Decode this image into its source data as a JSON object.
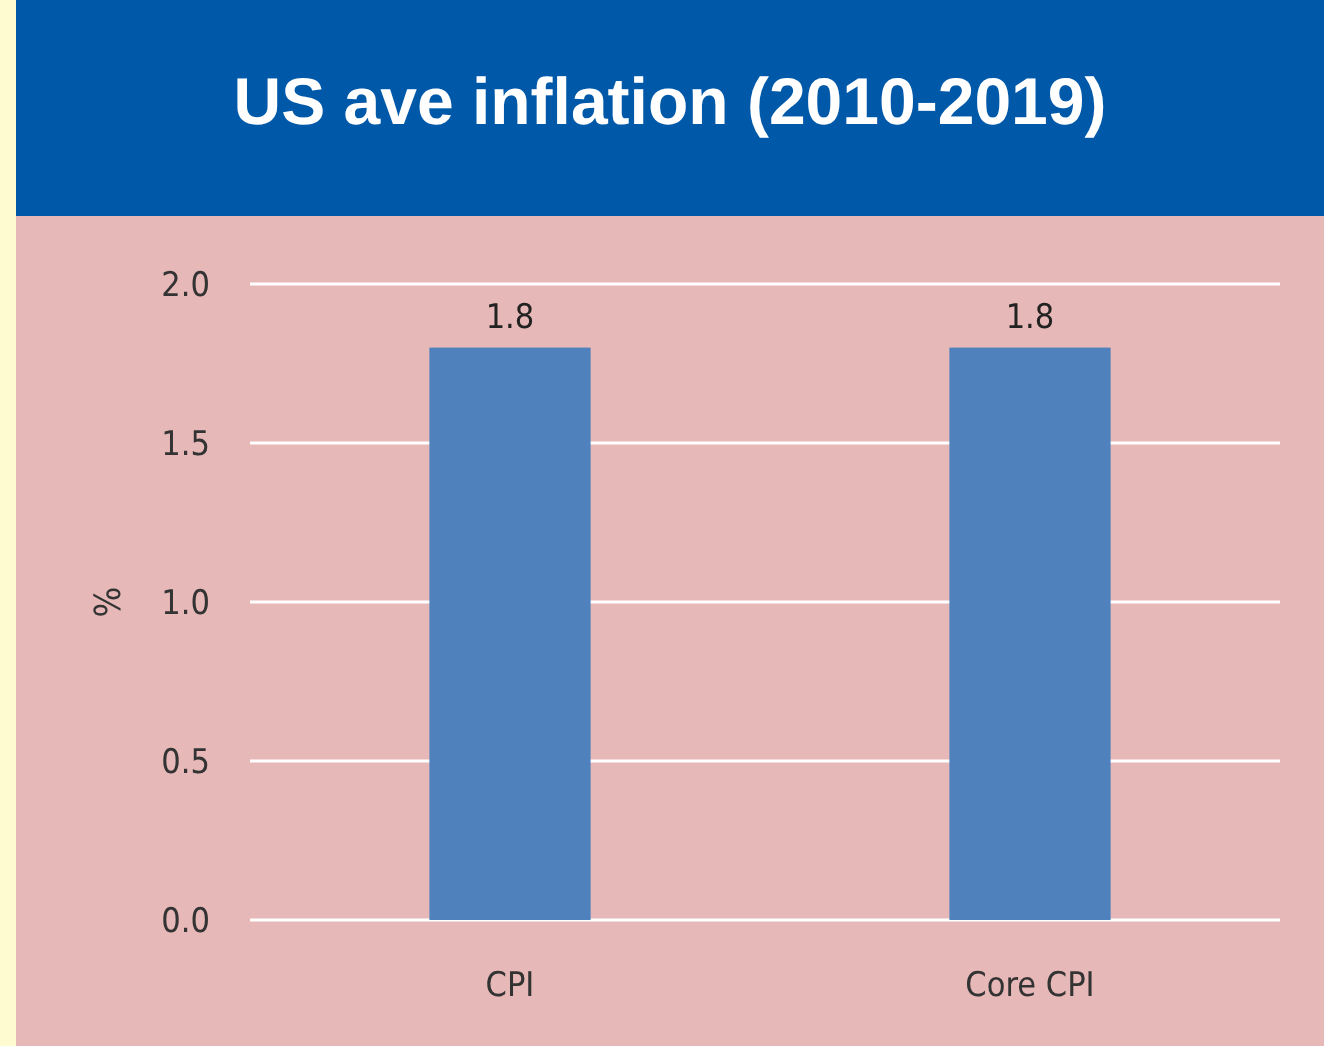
{
  "chart_data": {
    "type": "bar",
    "title": "US ave inflation (2010-2019)",
    "ylabel": "%",
    "categories": [
      "CPI",
      "Core CPI"
    ],
    "values": [
      1.8,
      1.8
    ],
    "color": "#4f81bd",
    "ylim": [
      0,
      2.0
    ],
    "yticks": [
      {
        "value": 0,
        "label": "0.0"
      },
      {
        "value": 0.5,
        "label": "0.5"
      },
      {
        "value": 1,
        "label": "1.0"
      },
      {
        "value": 1.5,
        "label": "1.5"
      },
      {
        "value": 2,
        "label": "2.0"
      }
    ],
    "grid": "y",
    "data_labels": true
  }
}
